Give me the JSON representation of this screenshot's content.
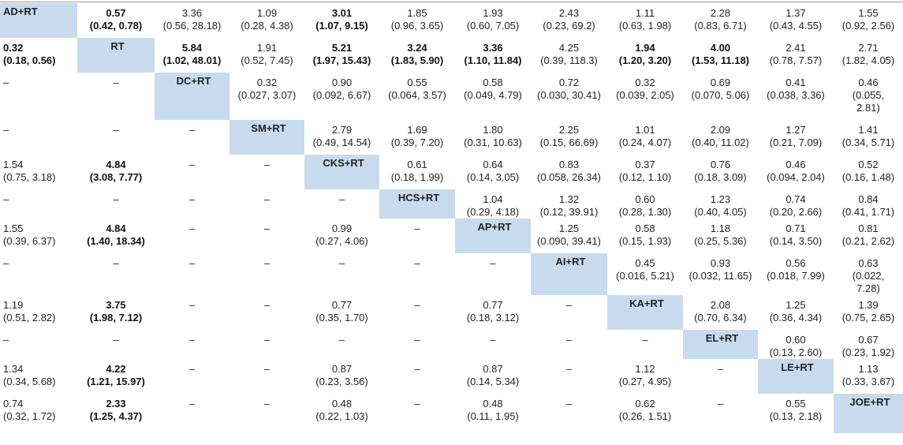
{
  "table": {
    "rows": [
      [
        {
          "t": "diag",
          "label": "AD+RT"
        },
        {
          "t": "val",
          "v": "0.57",
          "ci": "(0.42, 0.78)",
          "bold": true
        },
        {
          "t": "val",
          "v": "3.36",
          "ci": "(0.56, 28.18)"
        },
        {
          "t": "val",
          "v": "1.09",
          "ci": "(0.28, 4.38)"
        },
        {
          "t": "val",
          "v": "3.01",
          "ci": "(1.07, 9.15)",
          "bold": true
        },
        {
          "t": "val",
          "v": "1.85",
          "ci": "(0.96, 3.65)"
        },
        {
          "t": "val",
          "v": "1.93",
          "ci": "(0.60, 7.05)"
        },
        {
          "t": "val",
          "v": "2.43",
          "ci": "(0.23, 69.2)"
        },
        {
          "t": "val",
          "v": "1.11",
          "ci": "(0.63, 1.98)"
        },
        {
          "t": "val",
          "v": "2.28",
          "ci": "(0.83, 6.71)"
        },
        {
          "t": "val",
          "v": "1.37",
          "ci": "(0.43, 4.55)"
        },
        {
          "t": "val",
          "v": "1.55",
          "ci": "(0.92, 2.56)"
        }
      ],
      [
        {
          "t": "val",
          "v": "0.32",
          "ci": "(0.18, 0.56)",
          "bold": true
        },
        {
          "t": "diag",
          "label": "RT"
        },
        {
          "t": "val",
          "v": "5.84",
          "ci": "(1.02, 48.01)",
          "bold": true
        },
        {
          "t": "val",
          "v": "1.91",
          "ci": "(0.52, 7.45)"
        },
        {
          "t": "val",
          "v": "5.21",
          "ci": "(1.97, 15.43)",
          "bold": true
        },
        {
          "t": "val",
          "v": "3.24",
          "ci": "(1.83, 5.90)",
          "bold": true
        },
        {
          "t": "val",
          "v": "3.36",
          "ci": "(1.10, 11.84)",
          "bold": true
        },
        {
          "t": "val",
          "v": "4.25",
          "ci": "(0.39, 118.3)"
        },
        {
          "t": "val",
          "v": "1.94",
          "ci": "(1.20, 3.20)",
          "bold": true
        },
        {
          "t": "val",
          "v": "4.00",
          "ci": "(1.53, 11.18)",
          "bold": true
        },
        {
          "t": "val",
          "v": "2.41",
          "ci": "(0.78, 7.57)"
        },
        {
          "t": "val",
          "v": "2.71",
          "ci": "(1.82, 4.05)"
        }
      ],
      [
        {
          "t": "dash",
          "v": "–"
        },
        {
          "t": "dash",
          "v": "–"
        },
        {
          "t": "diag",
          "label": "DC+RT"
        },
        {
          "t": "val",
          "v": "0.32",
          "ci": "(0.027, 3.07)"
        },
        {
          "t": "val",
          "v": "0.90",
          "ci": "(0.092, 6.67)"
        },
        {
          "t": "val",
          "v": "0.55",
          "ci": "(0.064, 3.57)"
        },
        {
          "t": "val",
          "v": "0.58",
          "ci": "(0.049, 4.79)"
        },
        {
          "t": "val",
          "v": "0.72",
          "ci": "(0.030, 30.41)"
        },
        {
          "t": "val",
          "v": "0.32",
          "ci": "(0.039, 2.05)"
        },
        {
          "t": "val",
          "v": "0.69",
          "ci": "(0.070, 5.06)"
        },
        {
          "t": "val",
          "v": "0.41",
          "ci": "(0.038, 3.36)"
        },
        {
          "t": "val",
          "v": "0.46",
          "ci": "(0.055,",
          "ci2": "2.81)"
        }
      ],
      [
        {
          "t": "dash",
          "v": "–"
        },
        {
          "t": "dash",
          "v": "–"
        },
        {
          "t": "dash",
          "v": "–"
        },
        {
          "t": "diag",
          "label": "SM+RT"
        },
        {
          "t": "val",
          "v": "2.79",
          "ci": "(0.49, 14.54)"
        },
        {
          "t": "val",
          "v": "1.69",
          "ci": "(0.39, 7.20)"
        },
        {
          "t": "val",
          "v": "1.80",
          "ci": "(0.31, 10.63)"
        },
        {
          "t": "val",
          "v": "2.25",
          "ci": "(0.15, 66.69)"
        },
        {
          "t": "val",
          "v": "1.01",
          "ci": "(0.24, 4.07)"
        },
        {
          "t": "val",
          "v": "2.09",
          "ci": "(0.40, 11.02)"
        },
        {
          "t": "val",
          "v": "1.27",
          "ci": "(0.21, 7.09)"
        },
        {
          "t": "val",
          "v": "1.41",
          "ci": "(0.34, 5.71)"
        }
      ],
      [
        {
          "t": "val",
          "v": "1.54",
          "ci": "(0.75, 3.18)"
        },
        {
          "t": "val",
          "v": "4.84",
          "ci": "(3.08, 7.77)",
          "bold": true
        },
        {
          "t": "dash",
          "v": "–"
        },
        {
          "t": "dash",
          "v": "–"
        },
        {
          "t": "diag",
          "label": "CKS+RT"
        },
        {
          "t": "val",
          "v": "0.61",
          "ci": "(0.18, 1.99)"
        },
        {
          "t": "val",
          "v": "0.64",
          "ci": "(0.14, 3.05)"
        },
        {
          "t": "val",
          "v": "0.83",
          "ci": "(0.058, 26.34)"
        },
        {
          "t": "val",
          "v": "0.37",
          "ci": "(0.12, 1.10)"
        },
        {
          "t": "val",
          "v": "0.76",
          "ci": "(0.18, 3.09)"
        },
        {
          "t": "val",
          "v": "0.46",
          "ci": "(0.094, 2.04)"
        },
        {
          "t": "val",
          "v": "0.52",
          "ci": "(0.16, 1.48)"
        }
      ],
      [
        {
          "t": "dash",
          "v": "–"
        },
        {
          "t": "dash",
          "v": "–"
        },
        {
          "t": "dash",
          "v": "–"
        },
        {
          "t": "dash",
          "v": "–"
        },
        {
          "t": "dash",
          "v": "–"
        },
        {
          "t": "diag",
          "label": "HCS+RT"
        },
        {
          "t": "val",
          "v": "1.04",
          "ci": "(0.29, 4.18)"
        },
        {
          "t": "val",
          "v": "1.32",
          "ci": "(0.12, 39.91)"
        },
        {
          "t": "val",
          "v": "0.60",
          "ci": "(0.28, 1.30)"
        },
        {
          "t": "val",
          "v": "1.23",
          "ci": "(0.40, 4.05)"
        },
        {
          "t": "val",
          "v": "0.74",
          "ci": "(0.20, 2.66)"
        },
        {
          "t": "val",
          "v": "0.84",
          "ci": "(0.41, 1.71)"
        }
      ],
      [
        {
          "t": "val",
          "v": "1.55",
          "ci": "(0.39, 6.37)"
        },
        {
          "t": "val",
          "v": "4.84",
          "ci": "(1.40, 18.34)",
          "bold": true
        },
        {
          "t": "dash",
          "v": "–"
        },
        {
          "t": "dash",
          "v": "–"
        },
        {
          "t": "val",
          "v": "0.99",
          "ci": "(0.27, 4.06)"
        },
        {
          "t": "dash",
          "v": "–"
        },
        {
          "t": "diag",
          "label": "AP+RT"
        },
        {
          "t": "val",
          "v": "1.25",
          "ci": "(0.090, 39.41)"
        },
        {
          "t": "val",
          "v": "0.58",
          "ci": "(0.15, 1.93)"
        },
        {
          "t": "val",
          "v": "1.18",
          "ci": "(0.25, 5.36)"
        },
        {
          "t": "val",
          "v": "0.71",
          "ci": "(0.14, 3.50)"
        },
        {
          "t": "val",
          "v": "0.81",
          "ci": "(0.21, 2.62)"
        }
      ],
      [
        {
          "t": "dash",
          "v": "–"
        },
        {
          "t": "dash",
          "v": "–"
        },
        {
          "t": "dash",
          "v": "–"
        },
        {
          "t": "dash",
          "v": "–"
        },
        {
          "t": "dash",
          "v": "–"
        },
        {
          "t": "dash",
          "v": "–"
        },
        {
          "t": "dash",
          "v": "–"
        },
        {
          "t": "diag",
          "label": "AI+RT"
        },
        {
          "t": "val",
          "v": "0.45",
          "ci": "(0.016, 5.21)"
        },
        {
          "t": "val",
          "v": "0.93",
          "ci": "(0.032, 11.65)"
        },
        {
          "t": "val",
          "v": "0.56",
          "ci": "(0.018, 7.99)"
        },
        {
          "t": "val",
          "v": "0.63",
          "ci": "(0.022,",
          "ci2": "7.28)"
        }
      ],
      [
        {
          "t": "val",
          "v": "1.19",
          "ci": "(0.51, 2.82)"
        },
        {
          "t": "val",
          "v": "3.75",
          "ci": "(1.98, 7.12)",
          "bold": true
        },
        {
          "t": "dash",
          "v": "–"
        },
        {
          "t": "dash",
          "v": "–"
        },
        {
          "t": "val",
          "v": "0.77",
          "ci": "(0.35, 1.70)"
        },
        {
          "t": "dash",
          "v": "–"
        },
        {
          "t": "val",
          "v": "0.77",
          "ci": "(0.18, 3.12)"
        },
        {
          "t": "dash",
          "v": "–"
        },
        {
          "t": "diag",
          "label": "KA+RT"
        },
        {
          "t": "val",
          "v": "2.08",
          "ci": "(0.70, 6.34)"
        },
        {
          "t": "val",
          "v": "1.25",
          "ci": "(0.36, 4.34)"
        },
        {
          "t": "val",
          "v": "1.39",
          "ci": "(0.75, 2.65)"
        }
      ],
      [
        {
          "t": "dash",
          "v": "–"
        },
        {
          "t": "dash",
          "v": "–"
        },
        {
          "t": "dash",
          "v": "–"
        },
        {
          "t": "dash",
          "v": "–"
        },
        {
          "t": "dash",
          "v": "–"
        },
        {
          "t": "dash",
          "v": "–"
        },
        {
          "t": "dash",
          "v": "–"
        },
        {
          "t": "dash",
          "v": "–"
        },
        {
          "t": "dash",
          "v": "–"
        },
        {
          "t": "diag",
          "label": "EL+RT"
        },
        {
          "t": "val",
          "v": "0.60",
          "ci": "(0.13, 2.60)"
        },
        {
          "t": "val",
          "v": "0.67",
          "ci": "(0.23, 1.92)"
        }
      ],
      [
        {
          "t": "val",
          "v": "1.34",
          "ci": "(0.34, 5.68)"
        },
        {
          "t": "val",
          "v": "4.22",
          "ci": "(1.21, 15.97)",
          "bold": true
        },
        {
          "t": "dash",
          "v": "–"
        },
        {
          "t": "dash",
          "v": "–"
        },
        {
          "t": "val",
          "v": "0.87",
          "ci": "(0.23, 3.56)"
        },
        {
          "t": "dash",
          "v": "–"
        },
        {
          "t": "val",
          "v": "0.87",
          "ci": "(0.14, 5.34)"
        },
        {
          "t": "dash",
          "v": "–"
        },
        {
          "t": "val",
          "v": "1.12",
          "ci": "(0.27, 4.95)"
        },
        {
          "t": "dash",
          "v": "–"
        },
        {
          "t": "diag",
          "label": "LE+RT"
        },
        {
          "t": "val",
          "v": "1.13",
          "ci": "(0.33, 3.67)"
        }
      ],
      [
        {
          "t": "val",
          "v": "0.74",
          "ci": "(0.32, 1.72)"
        },
        {
          "t": "val",
          "v": "2.33",
          "ci": "(1.25, 4.37)",
          "bold": true
        },
        {
          "t": "dash",
          "v": "–"
        },
        {
          "t": "dash",
          "v": "–"
        },
        {
          "t": "val",
          "v": "0.48",
          "ci": "(0.22, 1.03)"
        },
        {
          "t": "dash",
          "v": "–"
        },
        {
          "t": "val",
          "v": "0.48",
          "ci": "(0.11, 1.95)"
        },
        {
          "t": "dash",
          "v": "–"
        },
        {
          "t": "val",
          "v": "0.62",
          "ci": "(0.26, 1.51)"
        },
        {
          "t": "dash",
          "v": "–"
        },
        {
          "t": "val",
          "v": "0.55",
          "ci": "(0.13, 2.18)"
        },
        {
          "t": "diag",
          "label": "JOE+RT"
        }
      ]
    ]
  }
}
